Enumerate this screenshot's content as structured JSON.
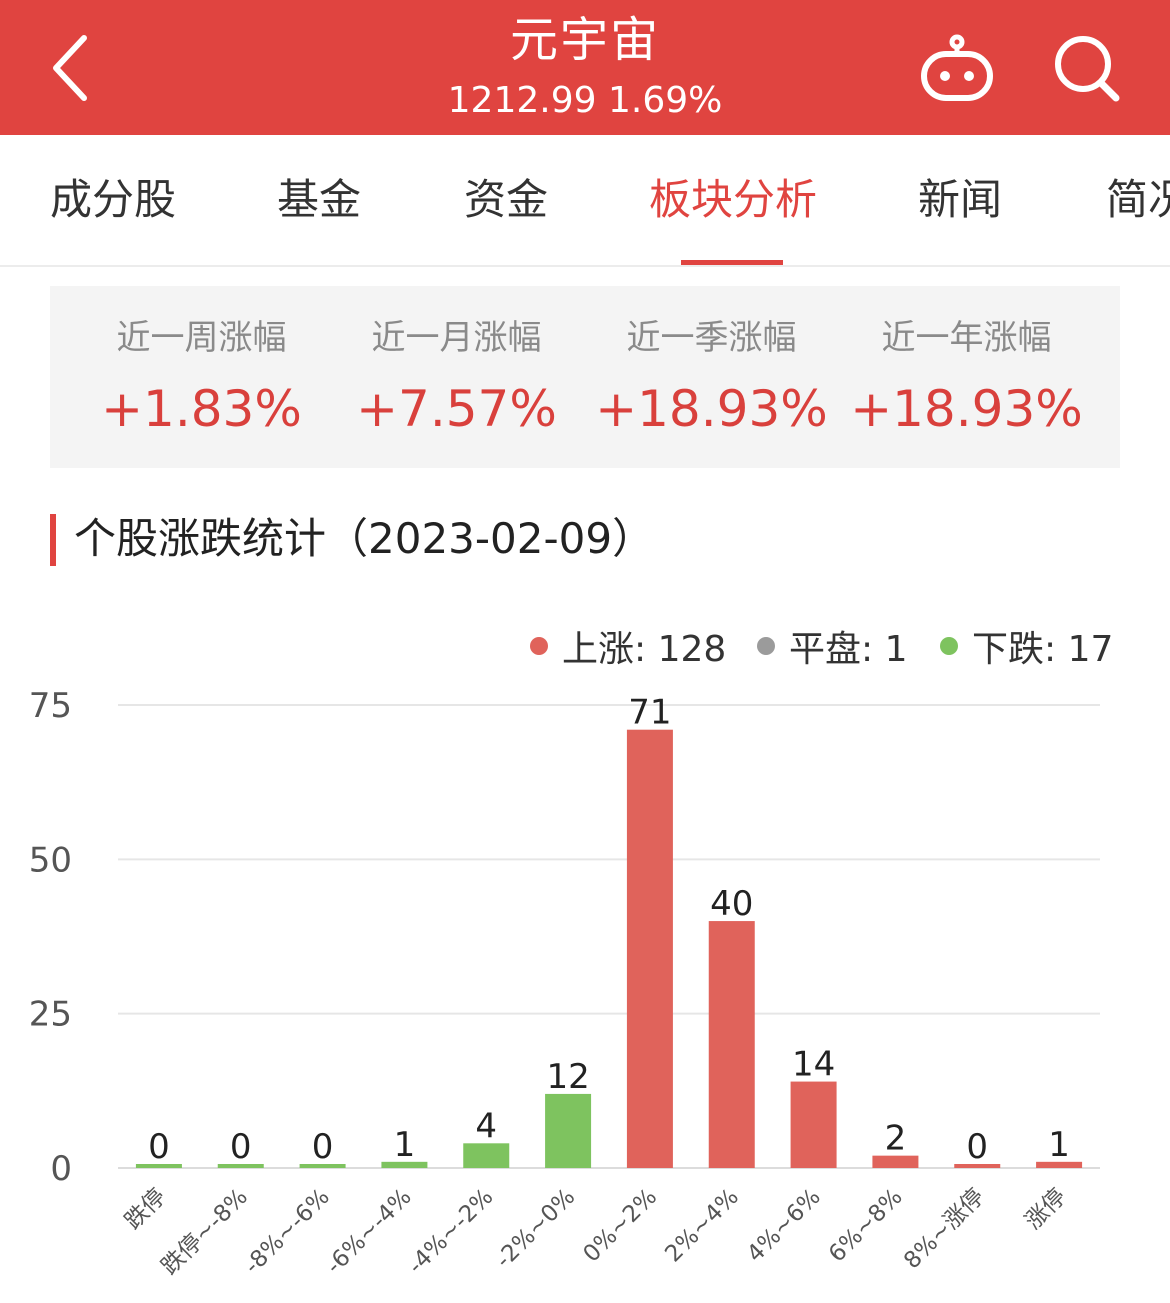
{
  "header": {
    "title": "元宇宙",
    "subtitle": "1212.99 1.69%",
    "back_icon": "chevron-left-icon",
    "robot_icon": "robot-icon",
    "search_icon": "search-icon",
    "bg_color": "#e04440"
  },
  "tabs": [
    {
      "label": "成分股"
    },
    {
      "label": "基金"
    },
    {
      "label": "资金"
    },
    {
      "label": "板块分析",
      "active": true
    },
    {
      "label": "新闻"
    },
    {
      "label": "简况"
    }
  ],
  "stats": [
    {
      "label": "近一周涨幅",
      "value": "+1.83%"
    },
    {
      "label": "近一月涨幅",
      "value": "+7.57%"
    },
    {
      "label": "近一季涨幅",
      "value": "+18.93%"
    },
    {
      "label": "近一年涨幅",
      "value": "+18.93%"
    }
  ],
  "section": {
    "title": "个股涨跌统计（2023-02-09）"
  },
  "legend": [
    {
      "label": "上涨: 128",
      "color": "#e0635b"
    },
    {
      "label": "平盘: 1",
      "color": "#9b9b9b"
    },
    {
      "label": "下跌: 17",
      "color": "#7ec35f"
    }
  ],
  "chart_data": {
    "type": "bar",
    "categories": [
      "跌停",
      "跌停~-8%",
      "-8%~-6%",
      "-6%~-4%",
      "-4%~-2%",
      "-2%~0%",
      "0%~2%",
      "2%~4%",
      "4%~6%",
      "6%~8%",
      "8%~涨停",
      "涨停"
    ],
    "values": [
      0,
      0,
      0,
      1,
      4,
      12,
      71,
      40,
      14,
      2,
      0,
      1
    ],
    "bar_colors": [
      "#7ec35f",
      "#7ec35f",
      "#7ec35f",
      "#7ec35f",
      "#7ec35f",
      "#7ec35f",
      "#e0635b",
      "#e0635b",
      "#e0635b",
      "#e0635b",
      "#e0635b",
      "#e0635b"
    ],
    "ylim": [
      0,
      75
    ],
    "yticks": [
      0,
      25,
      50,
      75
    ],
    "grid": true
  }
}
